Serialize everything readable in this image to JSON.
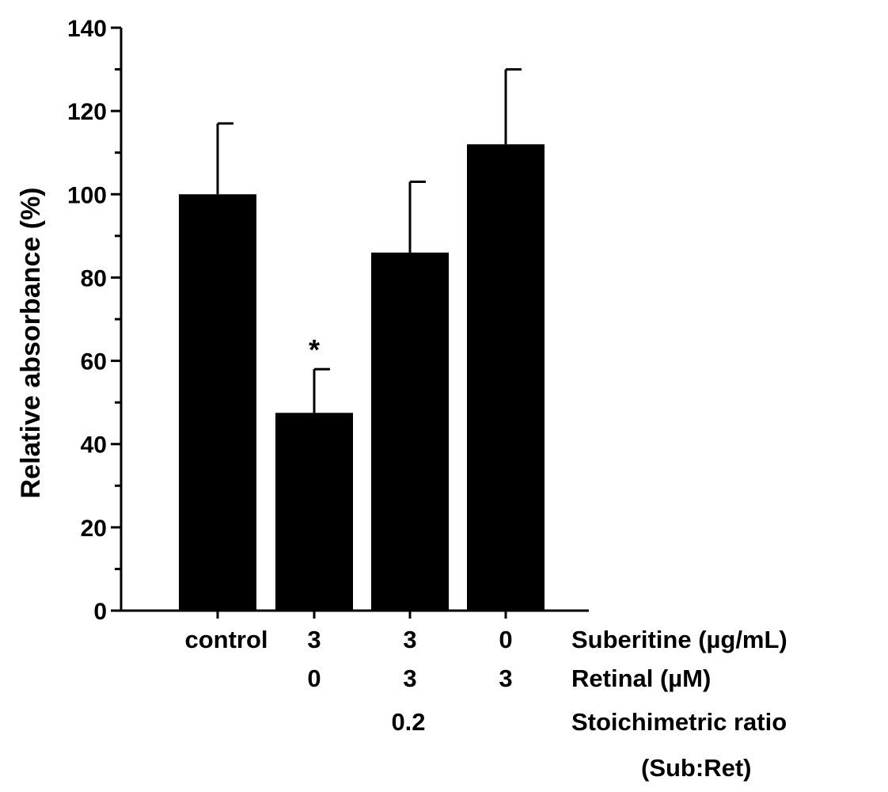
{
  "chart_data": {
    "type": "bar",
    "title": "",
    "xlabel": "",
    "ylabel": "Relative absorbance (%)",
    "ylim": [
      0,
      140
    ],
    "yticks": [
      0,
      20,
      40,
      60,
      80,
      100,
      120,
      140
    ],
    "grid": false,
    "categories": [
      "control",
      "3",
      "3",
      "0"
    ],
    "values": [
      100,
      47.5,
      86,
      112
    ],
    "errors": [
      17,
      10.5,
      17,
      18
    ],
    "annotations": [
      "",
      "*",
      "",
      ""
    ],
    "row_labels": [
      {
        "label": "Suberitine (µg/mL)",
        "values": [
          "control",
          "3",
          "3",
          "0"
        ]
      },
      {
        "label": "Retinal (µM)",
        "values": [
          "",
          "0",
          "3",
          "3"
        ]
      },
      {
        "label": "Stoichimetric ratio",
        "values": [
          "",
          "",
          "0.2",
          ""
        ]
      },
      {
        "label": "(Sub:Ret)",
        "values": [
          "",
          "",
          "",
          ""
        ]
      }
    ],
    "bar_color": "#000000"
  }
}
